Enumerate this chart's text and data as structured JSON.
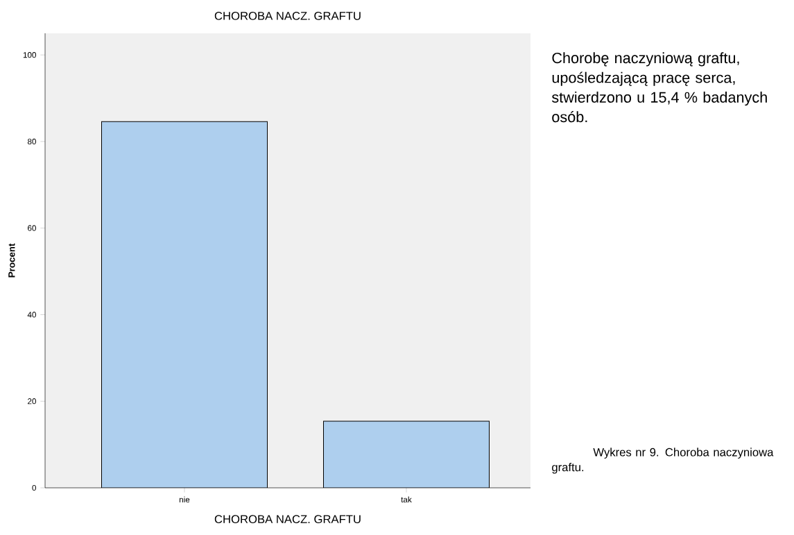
{
  "chart_data": {
    "type": "bar",
    "title": "CHOROBA NACZ. GRAFTU",
    "xlabel": "CHOROBA NACZ. GRAFTU",
    "ylabel": "Procent",
    "categories": [
      "nie",
      "tak"
    ],
    "values": [
      84.6,
      15.4
    ],
    "color": "#aecfee",
    "ylim": [
      0,
      105
    ],
    "yticks": [
      0,
      20,
      40,
      60,
      80,
      100
    ],
    "annotations": [
      "Chorobę naczyniową graftu, upośledzającą pracę serca, stwierdzono u 15,4 % badanych osób.",
      "Wykres nr 9. Choroba naczyniowa graftu."
    ]
  }
}
